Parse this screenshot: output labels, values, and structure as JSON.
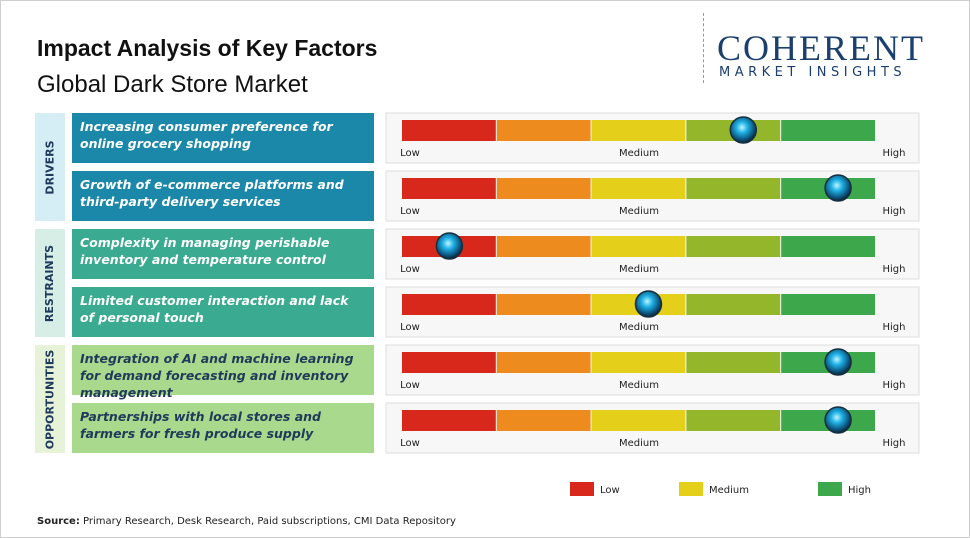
{
  "header": {
    "title": "Impact Analysis of Key Factors",
    "subtitle": "Global Dark Store Market"
  },
  "logo": {
    "name": "COHERENT",
    "tagline": "MARKET INSIGHTS"
  },
  "scale": {
    "range": [
      0,
      5
    ],
    "labels": [
      "Low",
      "Medium",
      "High"
    ],
    "segment_colors": [
      "#d8281b",
      "#ee8b1f",
      "#e4cf1b",
      "#93b62b",
      "#3ca74b"
    ]
  },
  "groups": [
    {
      "name": "DRIVERS",
      "color": "#1b87a9",
      "side_color": "#d5edf4",
      "text_color": "#ffffff",
      "factors": [
        {
          "text": "Increasing consumer preference for online grocery shopping",
          "impact": 3.6
        },
        {
          "text": "Growth of e-commerce platforms and third-party delivery services",
          "impact": 4.6
        }
      ]
    },
    {
      "name": "RESTRAINTS",
      "color": "#3aaa90",
      "side_color": "#d6eee5",
      "text_color": "#ffffff",
      "factors": [
        {
          "text": "Complexity in managing perishable inventory and temperature control",
          "impact": 0.5
        },
        {
          "text": "Limited customer interaction and lack of personal touch",
          "impact": 2.6
        }
      ]
    },
    {
      "name": "OPPORTUNITIES",
      "color": "#a9d98c",
      "side_color": "#e6f3d9",
      "text_color": "#1f3a5a",
      "factors": [
        {
          "text": "Integration of AI and machine learning for demand forecasting and inventory management",
          "impact": 4.6
        },
        {
          "text": "Partnerships with local stores and farmers for fresh produce supply",
          "impact": 4.6
        }
      ]
    }
  ],
  "legend": [
    {
      "label": "Low",
      "color": "#d8281b"
    },
    {
      "label": "Medium",
      "color": "#e4cf1b"
    },
    {
      "label": "High",
      "color": "#3ca74b"
    }
  ],
  "source": {
    "label": "Source:",
    "text": "Primary Research, Desk Research, Paid subscriptions, CMI Data Repository"
  }
}
